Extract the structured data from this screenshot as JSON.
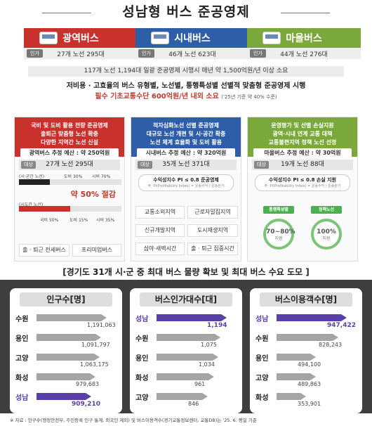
{
  "title": "성남형 버스 준공영제",
  "types": [
    {
      "name": "광역버스",
      "tag": "인가",
      "stats": "27개 노선 295대",
      "color": "#c9322c"
    },
    {
      "name": "시내버스",
      "tag": "인가",
      "stats": "46개 노선 623대",
      "color": "#2f5ea8"
    },
    {
      "name": "마을버스",
      "tag": "인가",
      "stats": "44개 노선 276대",
      "color": "#7aa83a"
    }
  ],
  "summary": "117개 노선 1,194대 일괄 준공영제 시행시 매년 약 1,500억원/년 이상 소요",
  "desc_line1": "저비용 · 고효율의 버스 유형별, 노선별, 통행특성별 선별적 맞춤형 준공영제 시행",
  "desc_line2": "필수 기초교통수단 600억원/년 내외 소요",
  "desc_line2_note": "('25년 기준 약 40% 수준)",
  "panels": [
    {
      "color": "#c9322c",
      "head": [
        "국비 및 도비 활용 전량 준공영제",
        "출퇴근 맞춤형 노선 확충",
        "다양한 지역간 노선 신설"
      ],
      "budget": "광역버스 추정 예산 : 약 250억원",
      "target_tag": "대상",
      "target": "27개 노선 295대",
      "bar1_label": "(시·군간 노선)",
      "bar1_left": "도비 30%",
      "bar1_right": "시비 70%",
      "bar1_value": 30,
      "cut": "약 50% 절감",
      "bar2_label": "(시도간 노선)",
      "bar2_left": "국비 50%",
      "bar2_mid": "도비 15%",
      "bar2_right": "시비 35%",
      "bar2_value": 50,
      "chips": [
        "출 · 퇴근 전세버스",
        "프리미엄버스"
      ]
    },
    {
      "color": "#2f5ea8",
      "head": [
        "적자심화노선 선별 준공영제",
        "대규모 노선 개편 및 시·공간 확충",
        "노선 체계 효율화 및 도비 활용"
      ],
      "budget": "시내버스 추정 예산 : 약 320억원",
      "target_tag": "대상",
      "target": "35개 노선 371대",
      "idx_title": "수익성지수 PI ≤ 0.8 준공영제",
      "idx_sub": "주: PI(Profitability Index) = 운송수익 / 운송원가",
      "chips": [
        "교통소외지역",
        "근로자밀집지역",
        "신규개발지역",
        "도시재생지역",
        "심야·새벽시간",
        "출 · 퇴근 집중시간"
      ]
    },
    {
      "color": "#7aa83a",
      "head": [
        "운영평가 및 선별 손실지원",
        "광역·시내 연계 교통 대책",
        "교통불편지역 정책 노선 선정"
      ],
      "budget": "마을버스 추정 예산 : 약 30억원",
      "target_tag": "대상",
      "target": "19개 노선 88대",
      "idx_title": "수익성지수 PI ≤ 0.8 손실 지원",
      "idx_sub": "주: PI(Profitability Index) = 운송수익 / 운송원가",
      "pills": [
        "통행특성별",
        "정책노선"
      ],
      "circles": [
        {
          "value": "70~80%",
          "sub": "지원"
        },
        {
          "value": "100%",
          "sub": "지원"
        }
      ]
    }
  ],
  "banner": "[경기도 31개 시·군 중 최대 버스 물량 확보 및 최대 버스 수요 도모 ]",
  "rankings": [
    {
      "title": "인구수[명]",
      "max": 1191063,
      "items": [
        {
          "city": "수원",
          "value": 1191063,
          "label": "1,191,063",
          "highlight": false
        },
        {
          "city": "용인",
          "value": 1091797,
          "label": "1,091,797",
          "highlight": false
        },
        {
          "city": "고양",
          "value": 1063175,
          "label": "1,063,175",
          "highlight": false
        },
        {
          "city": "화성",
          "value": 979683,
          "label": "979,683",
          "highlight": false
        },
        {
          "city": "성남",
          "value": 909210,
          "label": "909,210",
          "highlight": true
        }
      ]
    },
    {
      "title": "버스인가대수[대]",
      "max": 1194,
      "items": [
        {
          "city": "성남",
          "value": 1194,
          "label": "1,194",
          "highlight": true
        },
        {
          "city": "수원",
          "value": 1075,
          "label": "1,075",
          "highlight": false
        },
        {
          "city": "용인",
          "value": 1034,
          "label": "1,034",
          "highlight": false
        },
        {
          "city": "화성",
          "value": 961,
          "label": "961",
          "highlight": false
        },
        {
          "city": "고양",
          "value": 846,
          "label": "846",
          "highlight": false
        }
      ]
    },
    {
      "title": "버스이용객수[명]",
      "max": 947422,
      "items": [
        {
          "city": "성남",
          "value": 947422,
          "label": "947,422",
          "highlight": true
        },
        {
          "city": "수원",
          "value": 828243,
          "label": "828,243",
          "highlight": false
        },
        {
          "city": "용인",
          "value": 494100,
          "label": "494,100",
          "highlight": false
        },
        {
          "city": "고양",
          "value": 489863,
          "label": "489,863",
          "highlight": false
        },
        {
          "city": "화성",
          "value": 353901,
          "label": "353,901",
          "highlight": false
        }
      ]
    }
  ],
  "footer": "※ 자료 : 인구수(행정안전부, 주민등록 인구 통계, 외국인 제외) 및 버스이용객수(경기교통정보센터, 교통DB)는 '25. 6. 평일 기준"
}
